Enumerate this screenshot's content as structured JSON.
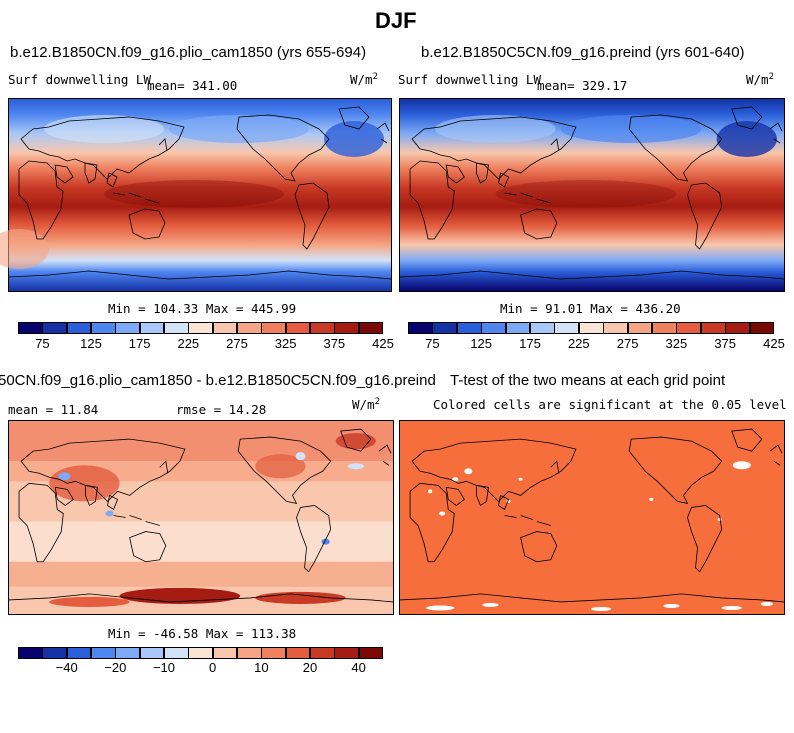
{
  "figure": {
    "title": "DJF"
  },
  "panels": {
    "p1": {
      "title": "b.e12.B1850CN.f09_g16.plio_cam1850 (yrs 655-694)",
      "left_label": "Surf downwelling LW",
      "mean_label": "mean= 341.00",
      "units": "W/m",
      "units_sup": "2",
      "minmax": "Min = 104.33 Max = 445.99"
    },
    "p2": {
      "title": "b.e12.B1850C5CN.f09_g16.preind (yrs 601-640)",
      "left_label": "Surf downwelling LW",
      "mean_label": "mean= 329.17",
      "units": "W/m",
      "units_sup": "2",
      "minmax": "Min =  91.01 Max = 436.20"
    },
    "p3": {
      "title": "50CN.f09_g16.plio_cam1850 - b.e12.B1850C5CN.f09_g16.preind",
      "mean_label": "mean =  11.84",
      "rmse_label": "rmse =  14.28",
      "units": "W/m",
      "units_sup": "2",
      "minmax": "Min = -46.58 Max = 113.38"
    },
    "p4": {
      "title": "T-test of the two means at each grid point",
      "subtitle": "Colored cells are significant at the 0.05 level"
    }
  },
  "colorbars": {
    "abs": {
      "ticks": [
        "75",
        "125",
        "175",
        "225",
        "275",
        "325",
        "375",
        "425"
      ],
      "colors": [
        "#08026e",
        "#1432a6",
        "#2a5fd9",
        "#4f86f0",
        "#7eaaf5",
        "#a9c8f7",
        "#d2e3f8",
        "#fbe3d6",
        "#f9c7ad",
        "#f5a585",
        "#ef8160",
        "#e35d3e",
        "#c93a25",
        "#a61c12",
        "#7a0906"
      ]
    },
    "diff": {
      "ticks": [
        "−40",
        "−20",
        "−10",
        "0",
        "10",
        "20",
        "40"
      ],
      "colors": [
        "#08026e",
        "#1432a6",
        "#2a5fd9",
        "#4f86f0",
        "#7eaaf5",
        "#a9c8f7",
        "#d2e3f8",
        "#fbe3d6",
        "#f9c7ad",
        "#f5a585",
        "#ef8160",
        "#e35d3e",
        "#c93a25",
        "#a61c12",
        "#7a0906"
      ]
    }
  },
  "chart_data": [
    {
      "type": "heatmap",
      "title": "b.e12.B1850CN.f09_g16.plio_cam1850 (yrs 655-694)",
      "variable": "Surf downwelling LW",
      "units": "W/m2",
      "mean": 341.0,
      "min": 104.33,
      "max": 445.99,
      "colorbar_ticks": [
        75,
        125,
        175,
        225,
        275,
        325,
        375,
        425
      ]
    },
    {
      "type": "heatmap",
      "title": "b.e12.B1850C5CN.f09_g16.preind (yrs 601-640)",
      "variable": "Surf downwelling LW",
      "units": "W/m2",
      "mean": 329.17,
      "min": 91.01,
      "max": 436.2,
      "colorbar_ticks": [
        75,
        125,
        175,
        225,
        275,
        325,
        375,
        425
      ]
    },
    {
      "type": "heatmap",
      "title": "50CN.f09_g16.plio_cam1850 - b.e12.B1850C5CN.f09_g16.preind",
      "units": "W/m2",
      "mean": 11.84,
      "rmse": 14.28,
      "min": -46.58,
      "max": 113.38,
      "colorbar_ticks": [
        -40,
        -20,
        -10,
        0,
        10,
        20,
        40
      ]
    },
    {
      "type": "heatmap",
      "title": "T-test of the two means at each grid point",
      "subtitle": "Colored cells are significant at the 0.05 level"
    }
  ]
}
